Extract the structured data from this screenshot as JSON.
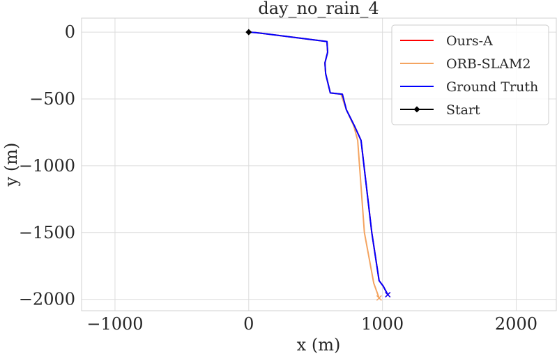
{
  "chart_data": {
    "type": "line",
    "title": "day_no_rain_4",
    "xlabel": "x (m)",
    "ylabel": "y (m)",
    "xlim": [
      -1250,
      2300
    ],
    "ylim": [
      -2085,
      105
    ],
    "xticks": [
      -1000,
      0,
      1000,
      2000
    ],
    "xtick_labels": [
      "−1000",
      "0",
      "1000",
      "2000"
    ],
    "yticks": [
      0,
      -500,
      -1000,
      -1500,
      -2000
    ],
    "ytick_labels": [
      "0",
      "−500",
      "−1000",
      "−1500",
      "−2000"
    ],
    "grid": true,
    "legend_position": "top-right",
    "series": [
      {
        "name": "Ours-A",
        "color": "#ff0000",
        "x": [
          0,
          50,
          585,
          590,
          570,
          575,
          610,
          700,
          730,
          790,
          840,
          920,
          975,
          1005,
          1040
        ],
        "y": [
          0,
          -3,
          -70,
          -150,
          -230,
          -310,
          -455,
          -465,
          -580,
          -700,
          -810,
          -1500,
          -1860,
          -1900,
          -1965
        ]
      },
      {
        "name": "ORB-SLAM2",
        "color": "#f4a460",
        "x": [
          0,
          50,
          585,
          590,
          570,
          575,
          610,
          690,
          730,
          785,
          815,
          865,
          935,
          975
        ],
        "y": [
          0,
          -3,
          -70,
          -150,
          -230,
          -310,
          -455,
          -465,
          -580,
          -700,
          -810,
          -1500,
          -1880,
          -1990
        ]
      },
      {
        "name": "Ground Truth",
        "color": "#0000ff",
        "x": [
          0,
          50,
          585,
          590,
          570,
          575,
          610,
          700,
          730,
          790,
          840,
          920,
          975,
          1005,
          1040
        ],
        "y": [
          0,
          -3,
          -70,
          -150,
          -230,
          -310,
          -455,
          -465,
          -580,
          -700,
          -810,
          -1500,
          -1860,
          -1900,
          -1965
        ]
      }
    ],
    "start": {
      "name": "Start",
      "color": "#000000",
      "x": 0,
      "y": 0
    }
  }
}
